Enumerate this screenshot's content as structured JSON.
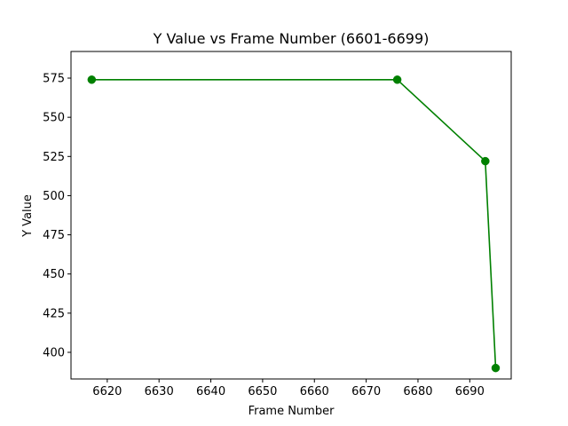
{
  "chart_data": {
    "type": "line",
    "title": "Y Value vs Frame Number (6601-6699)",
    "xlabel": "Frame Number",
    "ylabel": "Y Value",
    "xlim": [
      6613,
      6698
    ],
    "ylim": [
      383,
      592
    ],
    "xticks": [
      6620,
      6630,
      6640,
      6650,
      6660,
      6670,
      6680,
      6690
    ],
    "yticks": [
      400,
      425,
      450,
      475,
      500,
      525,
      550,
      575
    ],
    "grid": false,
    "legend": "none",
    "series": [
      {
        "color": "#008000",
        "marker": "circle",
        "x": [
          6617,
          6676,
          6693,
          6695
        ],
        "y": [
          574,
          574,
          522,
          390
        ]
      }
    ]
  }
}
